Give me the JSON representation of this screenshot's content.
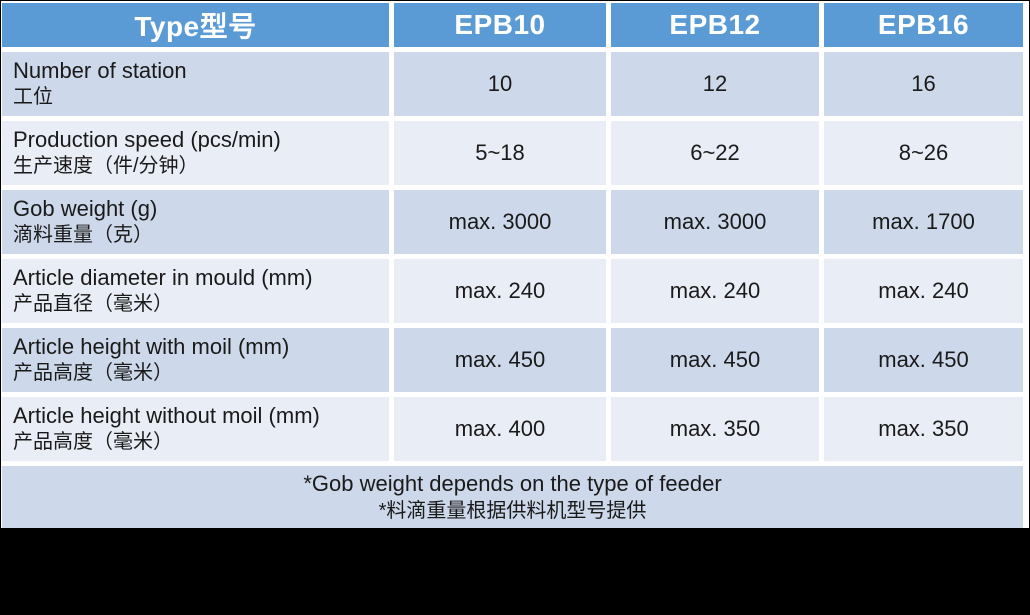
{
  "table": {
    "header": {
      "type_label": "Type型号",
      "columns": [
        "EPB10",
        "EPB12",
        "EPB16"
      ]
    },
    "rows": [
      {
        "label_en": "Number of station",
        "label_zh": "工位",
        "values": [
          "10",
          "12",
          "16"
        ]
      },
      {
        "label_en": "Production speed (pcs/min)",
        "label_zh": "生产速度（件/分钟）",
        "values": [
          "5~18",
          "6~22",
          "8~26"
        ]
      },
      {
        "label_en": "Gob weight (g)",
        "label_zh": "滴料重量（克）",
        "values": [
          "max. 3000",
          "max. 3000",
          "max. 1700"
        ]
      },
      {
        "label_en": "Article diameter in mould (mm)",
        "label_zh": "产品直径（毫米）",
        "values": [
          "max. 240",
          "max. 240",
          "max. 240"
        ]
      },
      {
        "label_en": "Article height with moil (mm)",
        "label_zh": "产品高度（毫米）",
        "values": [
          "max. 450",
          "max. 450",
          "max. 450"
        ]
      },
      {
        "label_en": "Article height without moil (mm)",
        "label_zh": "产品高度（毫米）",
        "values": [
          "max. 400",
          "max. 350",
          "max. 350"
        ]
      }
    ],
    "footnote_en": "*Gob weight depends on the type of feeder",
    "footnote_zh": "*料滴重量根据供料机型号提供"
  },
  "colors": {
    "header_bg": "#5b9bd5",
    "header_text": "#ffffff",
    "row_dark": "#cdd8eb",
    "row_light": "#e9edf6",
    "body_text": "#1a1a1a",
    "bottom_band": "#000000"
  }
}
